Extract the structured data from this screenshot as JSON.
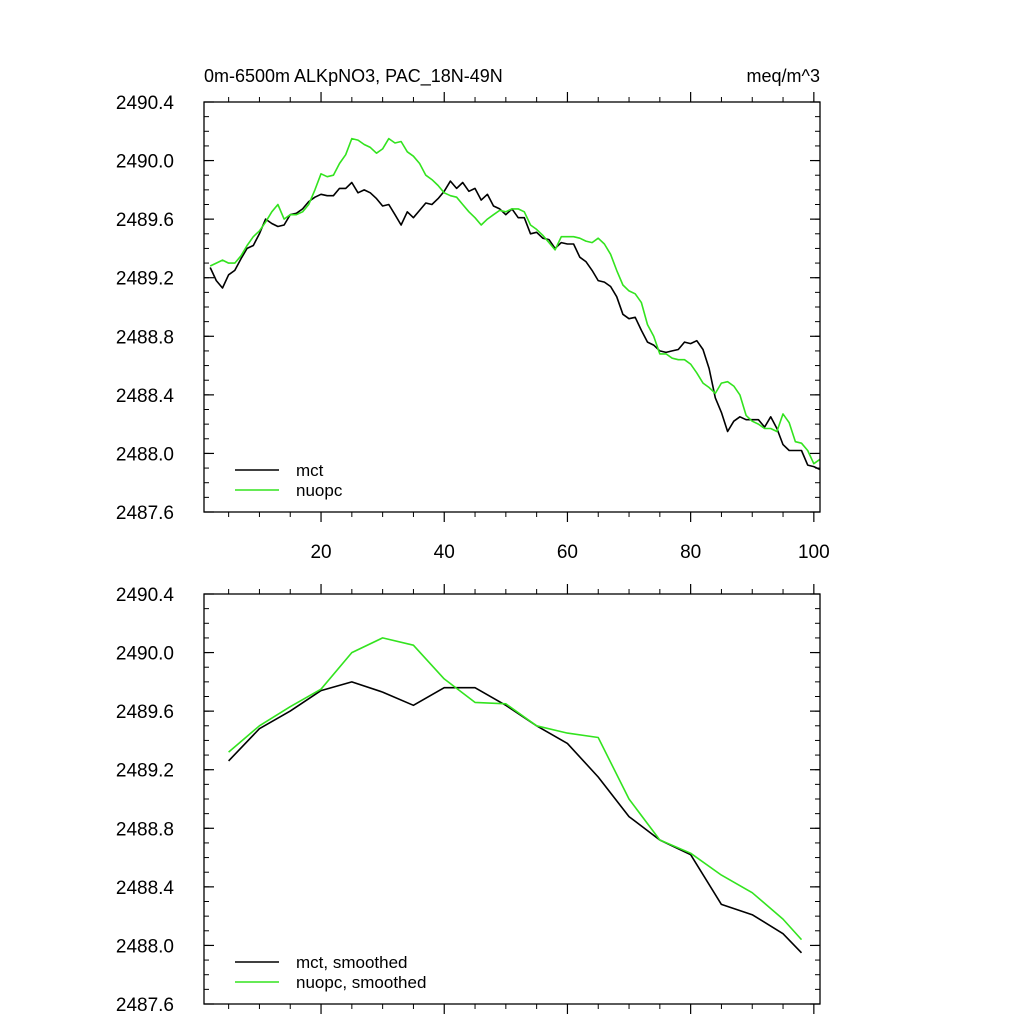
{
  "chart_data": [
    {
      "type": "line",
      "title": "0m-6500m ALKpNO3, PAC_18N-49N",
      "units": "meq/m^3",
      "xlabel": "",
      "ylabel": "",
      "xlim": [
        1,
        101
      ],
      "ylim": [
        2487.6,
        2490.4
      ],
      "x_ticks": [
        20,
        40,
        60,
        80,
        100
      ],
      "x_tick_labels": [
        "20",
        "40",
        "60",
        "80",
        "100"
      ],
      "y_ticks": [
        2487.6,
        2488.0,
        2488.4,
        2488.8,
        2489.2,
        2489.6,
        2490.0,
        2490.4
      ],
      "y_tick_labels": [
        "2487.6",
        "2488.0",
        "2488.4",
        "2488.8",
        "2489.2",
        "2489.6",
        "2490.0",
        "2490.4"
      ],
      "grid": false,
      "legend_position": "bottom-left",
      "x": [
        2,
        3,
        4,
        5,
        6,
        7,
        8,
        9,
        10,
        11,
        12,
        13,
        14,
        15,
        16,
        17,
        18,
        19,
        20,
        21,
        22,
        23,
        24,
        25,
        26,
        27,
        28,
        29,
        30,
        31,
        32,
        33,
        34,
        35,
        36,
        37,
        38,
        39,
        40,
        41,
        42,
        43,
        44,
        45,
        46,
        47,
        48,
        49,
        50,
        51,
        52,
        53,
        54,
        55,
        56,
        57,
        58,
        59,
        60,
        61,
        62,
        63,
        64,
        65,
        66,
        67,
        68,
        69,
        70,
        71,
        72,
        73,
        74,
        75,
        76,
        77,
        78,
        79,
        80,
        81,
        82,
        83,
        84,
        85,
        86,
        87,
        88,
        89,
        90,
        91,
        92,
        93,
        94,
        95,
        96,
        97,
        98,
        99,
        100,
        101
      ],
      "series": [
        {
          "name": "mct",
          "color": "#000000",
          "values": [
            2489.27,
            2489.18,
            2489.13,
            2489.22,
            2489.25,
            2489.33,
            2489.4,
            2489.42,
            2489.5,
            2489.6,
            2489.57,
            2489.55,
            2489.56,
            2489.63,
            2489.64,
            2489.67,
            2489.72,
            2489.75,
            2489.77,
            2489.76,
            2489.76,
            2489.81,
            2489.81,
            2489.85,
            2489.78,
            2489.8,
            2489.78,
            2489.74,
            2489.69,
            2489.7,
            2489.63,
            2489.56,
            2489.65,
            2489.61,
            2489.66,
            2489.71,
            2489.7,
            2489.74,
            2489.79,
            2489.86,
            2489.81,
            2489.85,
            2489.79,
            2489.81,
            2489.73,
            2489.77,
            2489.69,
            2489.67,
            2489.63,
            2489.67,
            2489.61,
            2489.61,
            2489.5,
            2489.51,
            2489.47,
            2489.46,
            2489.4,
            2489.44,
            2489.43,
            2489.43,
            2489.34,
            2489.31,
            2489.25,
            2489.18,
            2489.17,
            2489.14,
            2489.07,
            2488.95,
            2488.92,
            2488.93,
            2488.84,
            2488.76,
            2488.74,
            2488.7,
            2488.69,
            2488.7,
            2488.71,
            2488.76,
            2488.75,
            2488.77,
            2488.71,
            2488.58,
            2488.38,
            2488.28,
            2488.15,
            2488.22,
            2488.25,
            2488.23,
            2488.23,
            2488.23,
            2488.18,
            2488.25,
            2488.17,
            2488.06,
            2488.02,
            2488.02,
            2488.02,
            2487.92,
            2487.91,
            2487.89
          ]
        },
        {
          "name": "nuopc",
          "color": "#33e31f",
          "values": [
            2489.28,
            2489.3,
            2489.32,
            2489.3,
            2489.3,
            2489.35,
            2489.42,
            2489.48,
            2489.52,
            2489.58,
            2489.65,
            2489.7,
            2489.6,
            2489.63,
            2489.63,
            2489.65,
            2489.7,
            2489.8,
            2489.91,
            2489.89,
            2489.9,
            2489.98,
            2490.04,
            2490.15,
            2490.14,
            2490.11,
            2490.09,
            2490.05,
            2490.08,
            2490.15,
            2490.12,
            2490.13,
            2490.06,
            2490.03,
            2489.98,
            2489.9,
            2489.87,
            2489.83,
            2489.78,
            2489.76,
            2489.75,
            2489.7,
            2489.65,
            2489.61,
            2489.56,
            2489.6,
            2489.63,
            2489.66,
            2489.65,
            2489.67,
            2489.67,
            2489.65,
            2489.56,
            2489.53,
            2489.49,
            2489.44,
            2489.39,
            2489.48,
            2489.48,
            2489.48,
            2489.47,
            2489.45,
            2489.44,
            2489.47,
            2489.43,
            2489.36,
            2489.25,
            2489.15,
            2489.11,
            2489.09,
            2489.03,
            2488.88,
            2488.8,
            2488.68,
            2488.68,
            2488.65,
            2488.64,
            2488.64,
            2488.61,
            2488.55,
            2488.48,
            2488.45,
            2488.41,
            2488.48,
            2488.49,
            2488.46,
            2488.4,
            2488.26,
            2488.22,
            2488.2,
            2488.17,
            2488.17,
            2488.15,
            2488.27,
            2488.21,
            2488.08,
            2488.07,
            2488.02,
            2487.93,
            2487.96
          ]
        }
      ]
    },
    {
      "type": "line",
      "title": "",
      "xlabel": "",
      "ylabel": "",
      "xlim": [
        1,
        101
      ],
      "ylim": [
        2487.6,
        2490.4
      ],
      "x_ticks": [
        20,
        40,
        60,
        80,
        100
      ],
      "x_tick_labels": [],
      "y_ticks": [
        2487.6,
        2488.0,
        2488.4,
        2488.8,
        2489.2,
        2489.6,
        2490.0,
        2490.4
      ],
      "y_tick_labels": [
        "2487.6",
        "2488.0",
        "2488.4",
        "2488.8",
        "2489.2",
        "2489.6",
        "2490.0",
        "2490.4"
      ],
      "grid": false,
      "legend_position": "bottom-left",
      "x": [
        5,
        10,
        15,
        20,
        25,
        30,
        35,
        40,
        45,
        50,
        55,
        60,
        65,
        70,
        75,
        80,
        85,
        90,
        95,
        98
      ],
      "series": [
        {
          "name": "mct, smoothed",
          "color": "#000000",
          "values": [
            2489.26,
            2489.48,
            2489.6,
            2489.74,
            2489.8,
            2489.73,
            2489.64,
            2489.76,
            2489.76,
            2489.64,
            2489.5,
            2489.38,
            2489.15,
            2488.88,
            2488.72,
            2488.62,
            2488.28,
            2488.21,
            2488.08,
            2487.95
          ]
        },
        {
          "name": "nuopc, smoothed",
          "color": "#33e31f",
          "values": [
            2489.32,
            2489.5,
            2489.63,
            2489.75,
            2490.0,
            2490.1,
            2490.05,
            2489.82,
            2489.66,
            2489.65,
            2489.5,
            2489.45,
            2489.42,
            2489.0,
            2488.72,
            2488.63,
            2488.48,
            2488.36,
            2488.18,
            2488.04
          ]
        }
      ]
    }
  ]
}
